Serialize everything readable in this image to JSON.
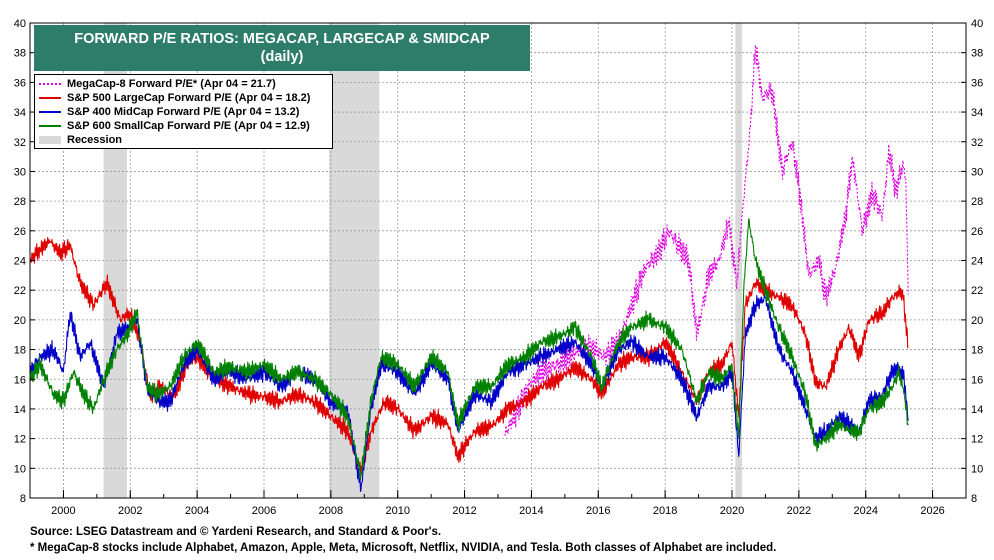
{
  "header": {
    "title": "FORWARD P/E RATIOS: MEGACAP, LARGECAP & SMIDCAP",
    "subtitle": "(daily)"
  },
  "footer": {
    "source": "Source: LSEG Datastream and © Yardeni Research, and Standard & Poor's.",
    "note": "* MegaCap-8 stocks include Alphabet, Amazon, Apple, Meta, Microsoft, Netflix, NVIDIA, and Tesla. Both classes of Alphabet are included."
  },
  "chart_data": {
    "type": "line",
    "xlim": [
      1999,
      2027
    ],
    "ylim": [
      8,
      40
    ],
    "x_ticks": [
      2000,
      2002,
      2004,
      2006,
      2008,
      2010,
      2012,
      2014,
      2016,
      2018,
      2020,
      2022,
      2024,
      2026
    ],
    "y_ticks": [
      8,
      10,
      12,
      14,
      16,
      18,
      20,
      22,
      24,
      26,
      28,
      30,
      32,
      34,
      36,
      38,
      40
    ],
    "grid": true,
    "legend_position": "top-left",
    "recessions": [
      [
        2001.2,
        2001.9
      ],
      [
        2007.95,
        2009.45
      ],
      [
        2020.1,
        2020.3
      ]
    ],
    "legend": [
      {
        "label": "MegaCap-8 Forward P/E* (Apr 04 = 21.7)",
        "color": "#e000e0",
        "style": "dotted"
      },
      {
        "label": "S&P 500 LargeCap Forward P/E (Apr 04 = 18.2)",
        "color": "#e00000",
        "style": "solid"
      },
      {
        "label": "S&P 400 MidCap Forward P/E (Apr 04 = 13.2)",
        "color": "#0000c8",
        "style": "solid"
      },
      {
        "label": "S&P 600 SmallCap Forward P/E (Apr 04 = 12.9)",
        "color": "#008000",
        "style": "solid"
      },
      {
        "label": "Recession",
        "color": "#d9d9d9",
        "style": "band"
      }
    ],
    "series": [
      {
        "name": "MegaCap-8 Forward P/E*",
        "color": "#e000e0",
        "dash": "2,2",
        "points": [
          [
            2013.2,
            12.3
          ],
          [
            2013.5,
            13.5
          ],
          [
            2013.9,
            15.5
          ],
          [
            2014.3,
            16.5
          ],
          [
            2014.8,
            17.0
          ],
          [
            2015.3,
            17.8
          ],
          [
            2015.8,
            18.2
          ],
          [
            2016.2,
            17.5
          ],
          [
            2016.6,
            18.5
          ],
          [
            2017.0,
            21.0
          ],
          [
            2017.4,
            23.5
          ],
          [
            2017.8,
            24.5
          ],
          [
            2018.1,
            26.0
          ],
          [
            2018.4,
            25.0
          ],
          [
            2018.7,
            24.0
          ],
          [
            2018.95,
            19.0
          ],
          [
            2019.3,
            23.0
          ],
          [
            2019.6,
            24.0
          ],
          [
            2019.9,
            26.5
          ],
          [
            2020.15,
            22.5
          ],
          [
            2020.3,
            27.0
          ],
          [
            2020.55,
            33.0
          ],
          [
            2020.7,
            38.5
          ],
          [
            2020.9,
            35.0
          ],
          [
            2021.2,
            35.5
          ],
          [
            2021.5,
            30.0
          ],
          [
            2021.8,
            32.0
          ],
          [
            2022.0,
            29.0
          ],
          [
            2022.3,
            23.0
          ],
          [
            2022.6,
            24.0
          ],
          [
            2022.8,
            21.5
          ],
          [
            2023.1,
            23.5
          ],
          [
            2023.4,
            27.0
          ],
          [
            2023.6,
            31.0
          ],
          [
            2023.9,
            26.0
          ],
          [
            2024.2,
            28.5
          ],
          [
            2024.5,
            27.0
          ],
          [
            2024.7,
            31.5
          ],
          [
            2024.9,
            28.5
          ],
          [
            2025.1,
            30.5
          ],
          [
            2025.2,
            29.5
          ],
          [
            2025.27,
            21.7
          ]
        ]
      },
      {
        "name": "S&P 500 LargeCap Forward P/E",
        "color": "#e00000",
        "dash": "",
        "points": [
          [
            1999.0,
            24.0
          ],
          [
            1999.3,
            24.8
          ],
          [
            1999.6,
            25.3
          ],
          [
            1999.9,
            24.5
          ],
          [
            2000.2,
            25.0
          ],
          [
            2000.5,
            22.5
          ],
          [
            2000.9,
            21.0
          ],
          [
            2001.3,
            22.5
          ],
          [
            2001.7,
            20.0
          ],
          [
            2002.0,
            20.5
          ],
          [
            2002.3,
            18.5
          ],
          [
            2002.6,
            14.8
          ],
          [
            2002.9,
            15.5
          ],
          [
            2003.3,
            14.8
          ],
          [
            2003.7,
            17.0
          ],
          [
            2004.0,
            17.5
          ],
          [
            2004.5,
            16.0
          ],
          [
            2005.0,
            15.5
          ],
          [
            2005.5,
            15.0
          ],
          [
            2006.0,
            14.8
          ],
          [
            2006.5,
            14.5
          ],
          [
            2007.0,
            15.0
          ],
          [
            2007.5,
            14.5
          ],
          [
            2008.0,
            13.5
          ],
          [
            2008.5,
            12.5
          ],
          [
            2008.9,
            9.8
          ],
          [
            2009.2,
            12.5
          ],
          [
            2009.6,
            14.5
          ],
          [
            2010.0,
            14.0
          ],
          [
            2010.5,
            12.5
          ],
          [
            2011.0,
            13.5
          ],
          [
            2011.5,
            13.0
          ],
          [
            2011.8,
            10.8
          ],
          [
            2012.3,
            12.5
          ],
          [
            2012.8,
            12.8
          ],
          [
            2013.3,
            14.0
          ],
          [
            2013.8,
            14.5
          ],
          [
            2014.3,
            15.5
          ],
          [
            2014.8,
            16.0
          ],
          [
            2015.3,
            16.8
          ],
          [
            2015.8,
            16.0
          ],
          [
            2016.1,
            15.0
          ],
          [
            2016.6,
            17.0
          ],
          [
            2017.0,
            17.5
          ],
          [
            2017.5,
            17.5
          ],
          [
            2018.0,
            18.5
          ],
          [
            2018.5,
            16.5
          ],
          [
            2018.95,
            14.5
          ],
          [
            2019.3,
            16.5
          ],
          [
            2019.7,
            17.0
          ],
          [
            2020.0,
            18.5
          ],
          [
            2020.2,
            13.5
          ],
          [
            2020.4,
            21.0
          ],
          [
            2020.7,
            22.5
          ],
          [
            2021.0,
            22.0
          ],
          [
            2021.4,
            21.5
          ],
          [
            2021.8,
            21.0
          ],
          [
            2022.2,
            19.0
          ],
          [
            2022.5,
            15.8
          ],
          [
            2022.8,
            15.5
          ],
          [
            2023.2,
            18.0
          ],
          [
            2023.5,
            19.5
          ],
          [
            2023.8,
            17.5
          ],
          [
            2024.1,
            20.0
          ],
          [
            2024.5,
            20.5
          ],
          [
            2024.8,
            21.5
          ],
          [
            2025.1,
            22.0
          ],
          [
            2025.27,
            18.2
          ]
        ]
      },
      {
        "name": "S&P 400 MidCap Forward P/E",
        "color": "#0000c8",
        "dash": "",
        "points": [
          [
            1999.0,
            16.5
          ],
          [
            1999.3,
            17.5
          ],
          [
            1999.7,
            18.0
          ],
          [
            2000.0,
            16.5
          ],
          [
            2000.2,
            20.5
          ],
          [
            2000.5,
            17.5
          ],
          [
            2000.8,
            18.5
          ],
          [
            2001.2,
            15.5
          ],
          [
            2001.6,
            19.0
          ],
          [
            2001.9,
            19.5
          ],
          [
            2002.2,
            20.0
          ],
          [
            2002.5,
            15.5
          ],
          [
            2002.8,
            14.5
          ],
          [
            2003.2,
            14.5
          ],
          [
            2003.6,
            17.0
          ],
          [
            2004.0,
            18.0
          ],
          [
            2004.5,
            16.0
          ],
          [
            2005.0,
            16.5
          ],
          [
            2005.5,
            16.0
          ],
          [
            2006.0,
            16.5
          ],
          [
            2006.5,
            15.5
          ],
          [
            2007.0,
            16.5
          ],
          [
            2007.5,
            16.0
          ],
          [
            2008.0,
            14.5
          ],
          [
            2008.5,
            14.0
          ],
          [
            2008.9,
            8.5
          ],
          [
            2009.2,
            14.0
          ],
          [
            2009.5,
            17.0
          ],
          [
            2010.0,
            16.5
          ],
          [
            2010.5,
            15.0
          ],
          [
            2011.0,
            17.0
          ],
          [
            2011.5,
            16.0
          ],
          [
            2011.8,
            12.5
          ],
          [
            2012.3,
            15.0
          ],
          [
            2012.8,
            14.5
          ],
          [
            2013.3,
            16.5
          ],
          [
            2013.8,
            17.0
          ],
          [
            2014.3,
            17.5
          ],
          [
            2014.8,
            18.0
          ],
          [
            2015.3,
            18.5
          ],
          [
            2015.8,
            17.0
          ],
          [
            2016.1,
            15.5
          ],
          [
            2016.6,
            18.0
          ],
          [
            2017.0,
            18.5
          ],
          [
            2017.5,
            17.5
          ],
          [
            2018.0,
            17.5
          ],
          [
            2018.5,
            16.0
          ],
          [
            2018.95,
            13.5
          ],
          [
            2019.3,
            15.5
          ],
          [
            2019.7,
            15.5
          ],
          [
            2020.0,
            16.5
          ],
          [
            2020.2,
            10.8
          ],
          [
            2020.4,
            19.0
          ],
          [
            2020.7,
            21.0
          ],
          [
            2021.0,
            21.5
          ],
          [
            2021.4,
            18.0
          ],
          [
            2021.8,
            16.5
          ],
          [
            2022.2,
            14.0
          ],
          [
            2022.5,
            12.0
          ],
          [
            2022.8,
            12.5
          ],
          [
            2023.2,
            13.5
          ],
          [
            2023.5,
            13.0
          ],
          [
            2023.8,
            12.5
          ],
          [
            2024.1,
            14.5
          ],
          [
            2024.5,
            15.0
          ],
          [
            2024.8,
            16.5
          ],
          [
            2025.0,
            16.8
          ],
          [
            2025.15,
            16.0
          ],
          [
            2025.27,
            13.2
          ]
        ]
      },
      {
        "name": "S&P 600 SmallCap Forward P/E",
        "color": "#008000",
        "dash": "",
        "points": [
          [
            1999.0,
            16.0
          ],
          [
            1999.3,
            17.0
          ],
          [
            1999.7,
            15.0
          ],
          [
            2000.0,
            14.5
          ],
          [
            2000.3,
            16.5
          ],
          [
            2000.6,
            15.0
          ],
          [
            2000.9,
            14.0
          ],
          [
            2001.2,
            16.0
          ],
          [
            2001.6,
            18.0
          ],
          [
            2001.9,
            19.0
          ],
          [
            2002.2,
            20.5
          ],
          [
            2002.5,
            15.5
          ],
          [
            2002.8,
            15.0
          ],
          [
            2003.2,
            15.5
          ],
          [
            2003.6,
            17.5
          ],
          [
            2004.0,
            18.5
          ],
          [
            2004.5,
            16.5
          ],
          [
            2005.0,
            16.8
          ],
          [
            2005.5,
            16.5
          ],
          [
            2006.0,
            17.0
          ],
          [
            2006.5,
            16.0
          ],
          [
            2007.0,
            16.5
          ],
          [
            2007.5,
            16.0
          ],
          [
            2008.0,
            15.0
          ],
          [
            2008.5,
            13.5
          ],
          [
            2008.9,
            9.5
          ],
          [
            2009.2,
            14.5
          ],
          [
            2009.5,
            17.5
          ],
          [
            2010.0,
            17.0
          ],
          [
            2010.5,
            15.5
          ],
          [
            2011.0,
            17.5
          ],
          [
            2011.5,
            16.5
          ],
          [
            2011.8,
            13.0
          ],
          [
            2012.3,
            15.5
          ],
          [
            2012.8,
            15.5
          ],
          [
            2013.3,
            17.0
          ],
          [
            2013.8,
            17.5
          ],
          [
            2014.3,
            18.5
          ],
          [
            2014.8,
            18.8
          ],
          [
            2015.3,
            19.5
          ],
          [
            2015.8,
            17.5
          ],
          [
            2016.1,
            15.5
          ],
          [
            2016.6,
            18.5
          ],
          [
            2017.0,
            19.5
          ],
          [
            2017.5,
            20.0
          ],
          [
            2018.0,
            19.5
          ],
          [
            2018.5,
            18.0
          ],
          [
            2018.95,
            14.5
          ],
          [
            2019.3,
            16.5
          ],
          [
            2019.7,
            16.0
          ],
          [
            2020.0,
            17.0
          ],
          [
            2020.2,
            12.0
          ],
          [
            2020.35,
            22.0
          ],
          [
            2020.5,
            26.8
          ],
          [
            2020.7,
            24.0
          ],
          [
            2021.0,
            22.0
          ],
          [
            2021.4,
            19.5
          ],
          [
            2021.8,
            17.5
          ],
          [
            2022.2,
            15.0
          ],
          [
            2022.5,
            11.5
          ],
          [
            2022.8,
            12.0
          ],
          [
            2023.2,
            13.0
          ],
          [
            2023.5,
            12.5
          ],
          [
            2023.8,
            12.5
          ],
          [
            2024.1,
            14.0
          ],
          [
            2024.5,
            14.5
          ],
          [
            2024.8,
            15.5
          ],
          [
            2025.0,
            16.5
          ],
          [
            2025.15,
            15.0
          ],
          [
            2025.27,
            12.9
          ]
        ]
      }
    ]
  }
}
